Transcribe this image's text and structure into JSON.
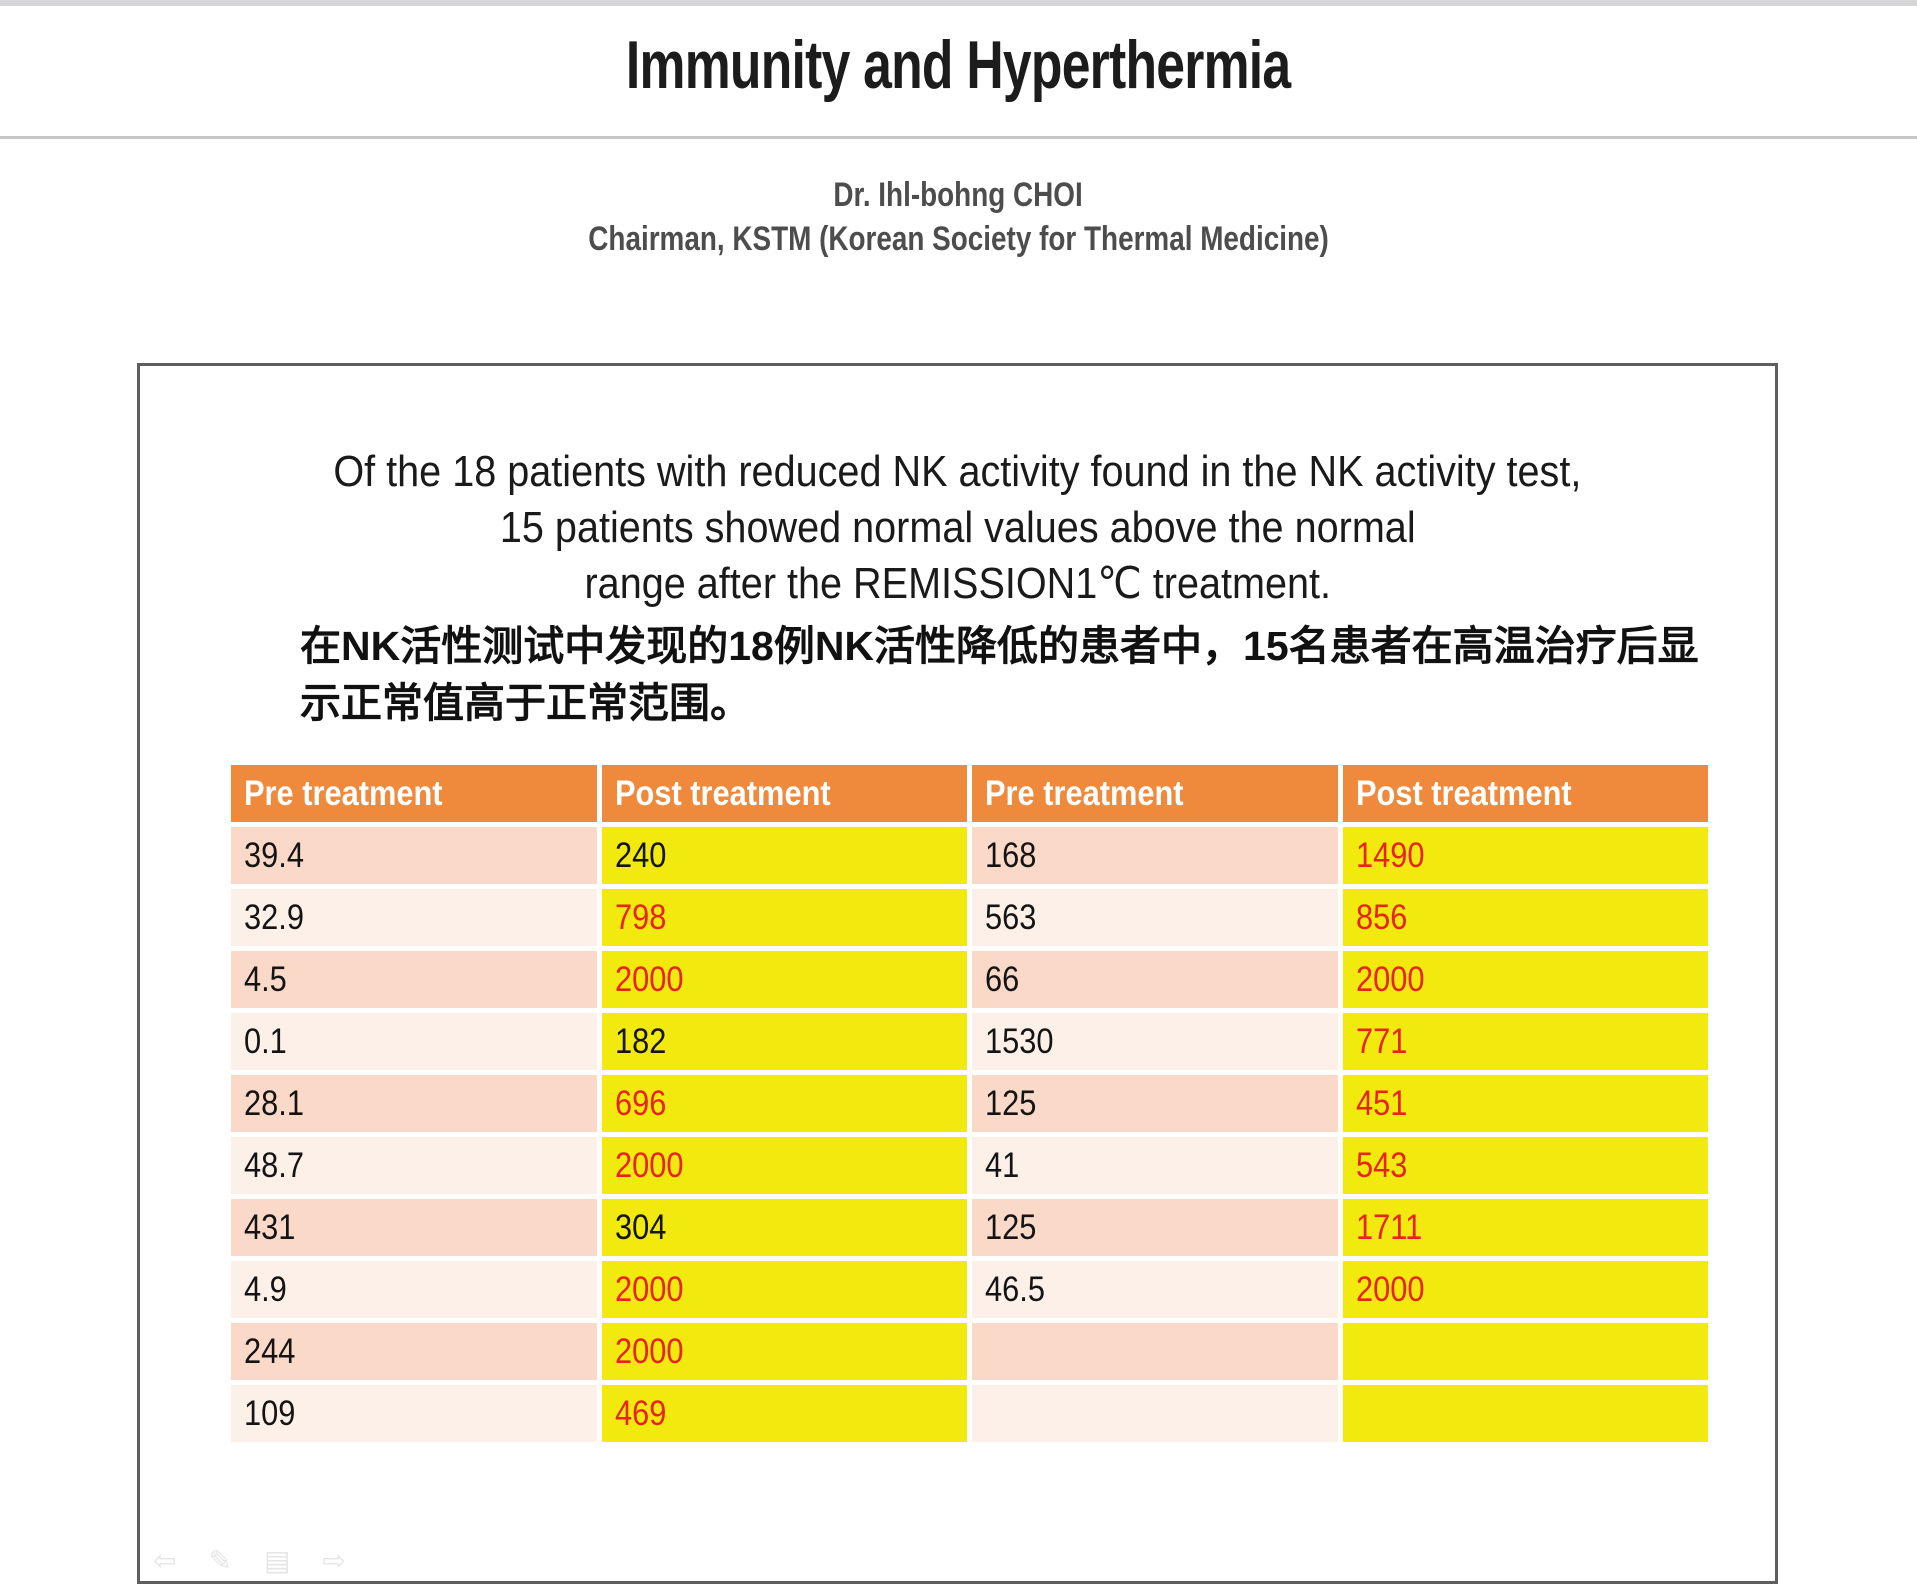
{
  "header": {
    "title": "Immunity and Hyperthermia",
    "author": "Dr. Ihl-bohng  CHOI",
    "affiliation": "Chairman, KSTM (Korean Society for Thermal Medicine)"
  },
  "body": {
    "en_lines": [
      "Of the 18 patients with reduced NK activity found in the NK activity test,",
      "15 patients showed normal values above the normal",
      "range after the REMISSION1℃ treatment."
    ],
    "zh_lines": [
      "在NK活性测试中发现的18例NK活性降低的患者中，15名患者在高温治疗后显",
      "示正常值高于正常范围。"
    ]
  },
  "table": {
    "headers": [
      "Pre treatment",
      "Post treatment",
      "Pre treatment",
      "Post treatment"
    ],
    "rows": [
      {
        "cells": [
          {
            "value": "39.4",
            "color": "black"
          },
          {
            "value": "240",
            "color": "black"
          },
          {
            "value": "168",
            "color": "black"
          },
          {
            "value": "1490",
            "color": "red"
          }
        ]
      },
      {
        "cells": [
          {
            "value": "32.9",
            "color": "black"
          },
          {
            "value": "798",
            "color": "red"
          },
          {
            "value": "563",
            "color": "black"
          },
          {
            "value": "856",
            "color": "red"
          }
        ]
      },
      {
        "cells": [
          {
            "value": "4.5",
            "color": "black"
          },
          {
            "value": "2000",
            "color": "red"
          },
          {
            "value": "66",
            "color": "black"
          },
          {
            "value": "2000",
            "color": "red"
          }
        ]
      },
      {
        "cells": [
          {
            "value": "0.1",
            "color": "black"
          },
          {
            "value": "182",
            "color": "black"
          },
          {
            "value": "1530",
            "color": "black"
          },
          {
            "value": "771",
            "color": "red"
          }
        ]
      },
      {
        "cells": [
          {
            "value": "28.1",
            "color": "black"
          },
          {
            "value": "696",
            "color": "red"
          },
          {
            "value": "125",
            "color": "black"
          },
          {
            "value": "451",
            "color": "red"
          }
        ]
      },
      {
        "cells": [
          {
            "value": "48.7",
            "color": "black"
          },
          {
            "value": "2000",
            "color": "red"
          },
          {
            "value": "41",
            "color": "black"
          },
          {
            "value": "543",
            "color": "red"
          }
        ]
      },
      {
        "cells": [
          {
            "value": "431",
            "color": "black"
          },
          {
            "value": "304",
            "color": "black"
          },
          {
            "value": "125",
            "color": "black"
          },
          {
            "value": "1711",
            "color": "red"
          }
        ]
      },
      {
        "cells": [
          {
            "value": "4.9",
            "color": "black"
          },
          {
            "value": "2000",
            "color": "red"
          },
          {
            "value": "46.5",
            "color": "black"
          },
          {
            "value": "2000",
            "color": "red"
          }
        ]
      },
      {
        "cells": [
          {
            "value": "244",
            "color": "black"
          },
          {
            "value": "2000",
            "color": "red"
          },
          {
            "value": "",
            "color": "black"
          },
          {
            "value": "",
            "color": "black"
          }
        ]
      },
      {
        "cells": [
          {
            "value": "109",
            "color": "black"
          },
          {
            "value": "469",
            "color": "red"
          },
          {
            "value": "",
            "color": "black"
          },
          {
            "value": "",
            "color": "black"
          }
        ]
      }
    ]
  },
  "colors": {
    "header_bg": "#ef8a3d",
    "pre_row_odd_bg": "#fbd9c8",
    "pre_row_even_bg": "#fdf0e8",
    "post_bg": "#f2e90f",
    "highlight_red": "#e8231a",
    "top_bar": "#d6d6d8"
  },
  "toolbar": {
    "back_glyph": "⇦",
    "pen_glyph": "✎",
    "menu_glyph": "▤",
    "forward_glyph": "⇨"
  }
}
